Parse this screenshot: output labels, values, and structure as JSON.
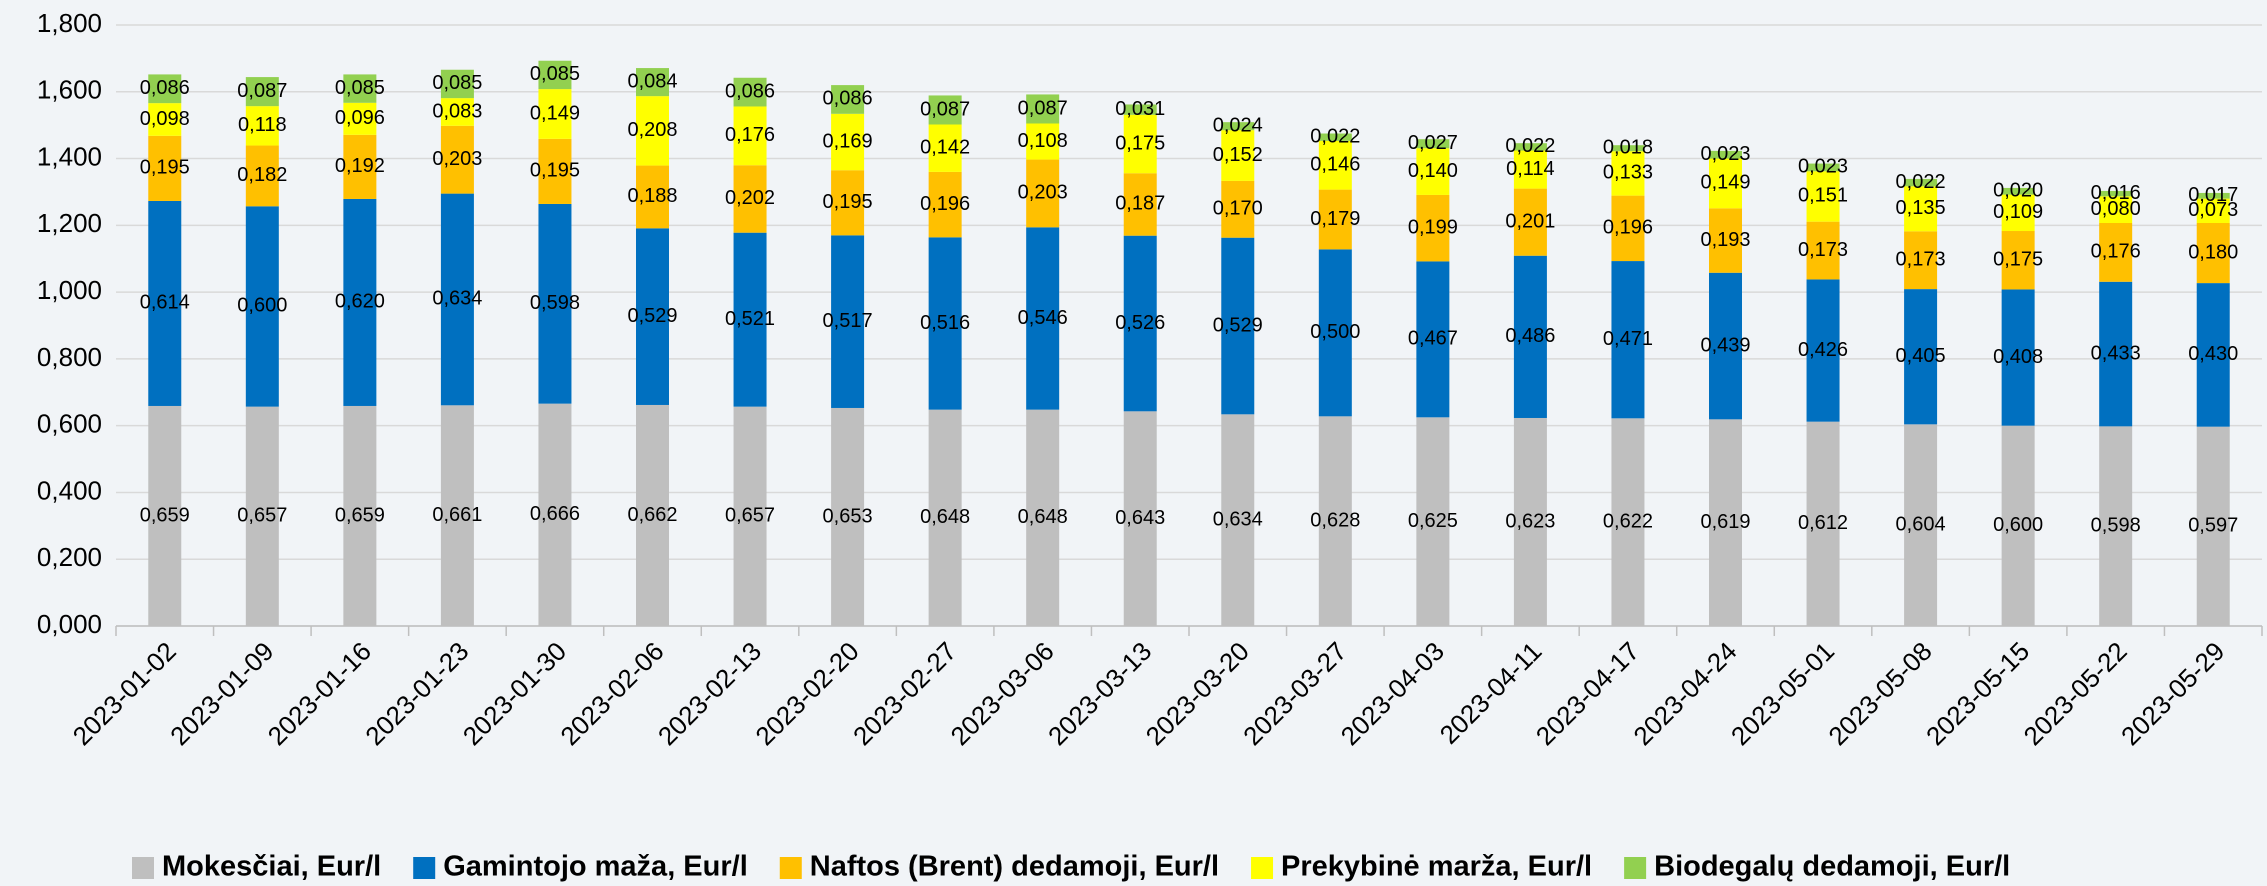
{
  "chart_data": {
    "type": "stacked_bar",
    "categories": [
      "2023-01-02",
      "2023-01-09",
      "2023-01-16",
      "2023-01-23",
      "2023-01-30",
      "2023-02-06",
      "2023-02-13",
      "2023-02-20",
      "2023-02-27",
      "2023-03-06",
      "2023-03-13",
      "2023-03-20",
      "2023-03-27",
      "2023-04-03",
      "2023-04-11",
      "2023-04-17",
      "2023-04-24",
      "2023-05-01",
      "2023-05-08",
      "2023-05-15",
      "2023-05-22",
      "2023-05-29"
    ],
    "series": [
      {
        "name": "Mokesčiai, Eur/l",
        "color": "#bfbfbf",
        "values": [
          0.659,
          0.657,
          0.659,
          0.661,
          0.666,
          0.662,
          0.657,
          0.653,
          0.648,
          0.648,
          0.643,
          0.634,
          0.628,
          0.625,
          0.623,
          0.622,
          0.619,
          0.612,
          0.604,
          0.6,
          0.598,
          0.597
        ],
        "value_labels": [
          "0,659",
          "0,657",
          "0,659",
          "0,661",
          "0,666",
          "0,662",
          "0,657",
          "0,653",
          "0,648",
          "0,648",
          "0,643",
          "0,634",
          "0,628",
          "0,625",
          "0,623",
          "0,622",
          "0,619",
          "0,612",
          "0,604",
          "0,600",
          "0,598",
          "0,597"
        ]
      },
      {
        "name": "Gamintojo maža, Eur/l",
        "color": "#0070c0",
        "values": [
          0.614,
          0.6,
          0.62,
          0.634,
          0.598,
          0.529,
          0.521,
          0.517,
          0.516,
          0.546,
          0.526,
          0.529,
          0.5,
          0.467,
          0.486,
          0.471,
          0.439,
          0.426,
          0.405,
          0.408,
          0.433,
          0.43
        ],
        "value_labels": [
          "0,614",
          "0,600",
          "0,620",
          "0,634",
          "0,598",
          "0,529",
          "0,521",
          "0,517",
          "0,516",
          "0,546",
          "0,526",
          "0,529",
          "0,500",
          "0,467",
          "0,486",
          "0,471",
          "0,439",
          "0,426",
          "0,405",
          "0,408",
          "0,433",
          "0,430"
        ]
      },
      {
        "name": "Naftos (Brent) dedamoji, Eur/l",
        "color": "#ffc000",
        "values": [
          0.195,
          0.182,
          0.192,
          0.203,
          0.195,
          0.188,
          0.202,
          0.195,
          0.196,
          0.203,
          0.187,
          0.17,
          0.179,
          0.199,
          0.201,
          0.196,
          0.193,
          0.173,
          0.173,
          0.175,
          0.176,
          0.18
        ],
        "value_labels": [
          "0,195",
          "0,182",
          "0,192",
          "0,203",
          "0,195",
          "0,188",
          "0,202",
          "0,195",
          "0,196",
          "0,203",
          "0,187",
          "0,170",
          "0,179",
          "0,199",
          "0,201",
          "0,196",
          "0,193",
          "0,173",
          "0,173",
          "0,175",
          "0,176",
          "0,180"
        ]
      },
      {
        "name": "Prekybinė marža, Eur/l",
        "color": "#ffff00",
        "values": [
          0.098,
          0.118,
          0.096,
          0.083,
          0.149,
          0.208,
          0.176,
          0.169,
          0.142,
          0.108,
          0.175,
          0.152,
          0.146,
          0.14,
          0.114,
          0.133,
          0.149,
          0.151,
          0.135,
          0.109,
          0.08,
          0.073
        ],
        "value_labels": [
          "0,098",
          "0,118",
          "0,096",
          "0,083",
          "0,149",
          "0,208",
          "0,176",
          "0,169",
          "0,142",
          "0,108",
          "0,175",
          "0,152",
          "0,146",
          "0,140",
          "0,114",
          "0,133",
          "0,149",
          "0,151",
          "0,135",
          "0,109",
          "0,080",
          "0,073"
        ]
      },
      {
        "name": "Biodegalų dedamoji, Eur/l",
        "color": "#92d050",
        "values": [
          0.086,
          0.087,
          0.085,
          0.085,
          0.085,
          0.084,
          0.086,
          0.086,
          0.087,
          0.087,
          0.031,
          0.024,
          0.022,
          0.027,
          0.022,
          0.018,
          0.023,
          0.023,
          0.022,
          0.02,
          0.016,
          0.017
        ],
        "value_labels": [
          "0,086",
          "0,087",
          "0,085",
          "0,085",
          "0,085",
          "0,084",
          "0,086",
          "0,086",
          "0,087",
          "0,087",
          "0,031",
          "0,024",
          "0,022",
          "0,027",
          "0,022",
          "0,018",
          "0,023",
          "0,023",
          "0,022",
          "0,020",
          "0,016",
          "0,017"
        ]
      }
    ],
    "ylim": [
      0,
      1.8
    ],
    "yticks": [
      {
        "value": 0,
        "label": "0,000"
      },
      {
        "value": 0.2,
        "label": "0,200"
      },
      {
        "value": 0.4,
        "label": "0,400"
      },
      {
        "value": 0.6,
        "label": "0,600"
      },
      {
        "value": 0.8,
        "label": "0,800"
      },
      {
        "value": 1.0,
        "label": "1,000"
      },
      {
        "value": 1.2,
        "label": "1,200"
      },
      {
        "value": 1.4,
        "label": "1,400"
      },
      {
        "value": 1.6,
        "label": "1,600"
      },
      {
        "value": 1.8,
        "label": "1,800"
      }
    ],
    "grid": true,
    "legend": "bottom"
  }
}
